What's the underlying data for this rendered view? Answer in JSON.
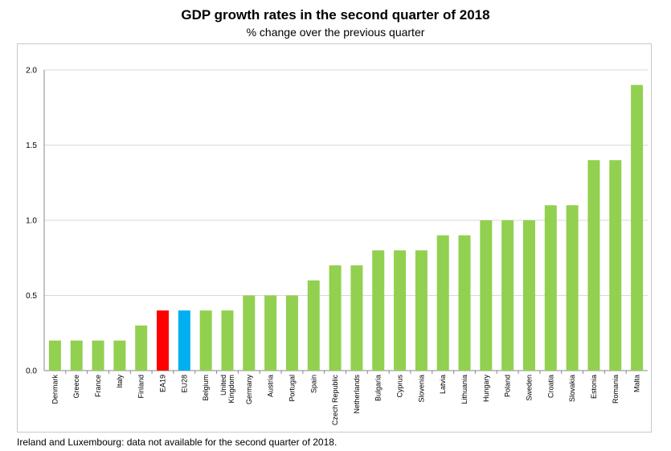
{
  "chart_data": {
    "type": "bar",
    "title": "GDP growth rates in the second quarter of 2018",
    "subtitle": "% change over the previous quarter",
    "xlabel": "",
    "ylabel": "",
    "ylim": [
      0,
      2.0
    ],
    "yticks": [
      "0.0",
      "0.5",
      "1.0",
      "1.5",
      "2.0"
    ],
    "grid": true,
    "categories": [
      "Denmark",
      "Greece",
      "France",
      "Italy",
      "Finland",
      "EA19",
      "EU28",
      "Belgium",
      "United Kingdom",
      "Germany",
      "Austria",
      "Portugal",
      "Spain",
      "Czech Republic",
      "Netherlands",
      "Bulgaria",
      "Cyprus",
      "Slovenia",
      "Latvia",
      "Lithuania",
      "Hungary",
      "Poland",
      "Sweden",
      "Croatia",
      "Slovakia",
      "Estonia",
      "Romania",
      "Malta"
    ],
    "values": [
      0.2,
      0.2,
      0.2,
      0.2,
      0.3,
      0.4,
      0.4,
      0.4,
      0.4,
      0.5,
      0.5,
      0.5,
      0.6,
      0.7,
      0.7,
      0.8,
      0.8,
      0.8,
      0.9,
      0.9,
      1.0,
      1.0,
      1.0,
      1.1,
      1.1,
      1.4,
      1.4,
      1.9
    ],
    "colors": {
      "default": "#92d050",
      "EA19": "#ff0000",
      "EU28": "#00b0f0",
      "grid": "#d9d9d9",
      "axis": "#888888"
    }
  },
  "footnote": "Ireland and Luxembourg: data not available for the second quarter of 2018."
}
